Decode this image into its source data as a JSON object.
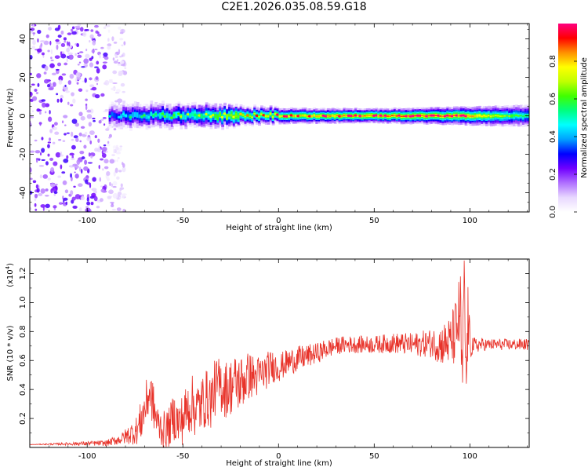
{
  "title": "C2E1.2026.035.08.59.G18",
  "chart_data": [
    {
      "type": "heatmap",
      "xlabel": "Height of straight line (km)",
      "ylabel": "Frequency (Hz)",
      "xlim": [
        -130,
        131
      ],
      "ylim": [
        -50,
        48
      ],
      "xticks": [
        -100,
        -50,
        0,
        50,
        100
      ],
      "yticks": [
        -40,
        -20,
        0,
        20,
        40
      ],
      "colorbar": {
        "label": "Normalized spectral amplitude",
        "range": [
          0,
          1
        ],
        "ticks": [
          "0.0",
          "0.2",
          "0.4",
          "0.6",
          "0.8"
        ],
        "colormap": [
          "#ffffff",
          "#e8d8ff",
          "#b070ff",
          "#7000ff",
          "#0000ff",
          "#00a0ff",
          "#00ffff",
          "#00ff80",
          "#40ff00",
          "#c0ff00",
          "#ffff00",
          "#ff9000",
          "#ff0000",
          "#ff0080"
        ]
      },
      "noise_region_x": [
        -130,
        -80
      ],
      "signal_center_hz": 0,
      "signal_profile": [
        {
          "x": -85,
          "amp": 0.35,
          "width": 3.0
        },
        {
          "x": -75,
          "amp": 0.45,
          "width": 3.2
        },
        {
          "x": -50,
          "amp": 0.55,
          "width": 3.0
        },
        {
          "x": -25,
          "amp": 0.7,
          "width": 2.8
        },
        {
          "x": 0,
          "amp": 0.85,
          "width": 2.2
        },
        {
          "x": 50,
          "amp": 0.95,
          "width": 2.0
        },
        {
          "x": 95,
          "amp": 0.95,
          "width": 2.5
        },
        {
          "x": 131,
          "amp": 0.6,
          "width": 3.0
        }
      ]
    },
    {
      "type": "line",
      "xlabel": "Height of straight line (km)",
      "ylabel": "SNR (10 * v/v)",
      "y_multiplier_label": "(x10",
      "y_multiplier_exp": "4",
      "xlim": [
        -130,
        131
      ],
      "ylim": [
        0,
        13000
      ],
      "xticks": [
        -100,
        -50,
        0,
        50,
        100
      ],
      "yticks": [
        2000,
        4000,
        6000,
        8000,
        10000,
        12000
      ],
      "ytick_labels": [
        "0.2",
        "0.4",
        "0.6",
        "0.8",
        "1.0",
        "1.2"
      ],
      "color": "#e8332a",
      "series": [
        {
          "x": [
            -130,
            -90,
            -82,
            -78,
            -74,
            -72,
            -70,
            -68,
            -67,
            -66,
            -65,
            -63,
            -60,
            -57,
            -55,
            -52,
            -50,
            -47,
            -45,
            -43,
            -40,
            -38,
            -35,
            -33,
            -30,
            -28,
            -25,
            -22,
            -20,
            -17,
            -15,
            -12,
            -10,
            -7,
            -5,
            -2,
            0,
            5,
            10,
            15,
            20,
            25,
            30,
            35,
            40,
            50,
            60,
            70,
            80,
            85,
            90,
            93,
            95,
            96,
            97,
            98,
            99,
            100,
            102,
            105,
            110,
            120,
            131
          ],
          "y": [
            200,
            300,
            600,
            900,
            1200,
            1800,
            2600,
            3600,
            3800,
            3200,
            2500,
            1600,
            1200,
            1400,
            2200,
            1600,
            2000,
            2800,
            3000,
            2600,
            3000,
            3400,
            3300,
            4200,
            4300,
            4000,
            4200,
            4500,
            4400,
            4800,
            5000,
            4800,
            5000,
            5200,
            5500,
            5600,
            5500,
            5900,
            6100,
            6300,
            6500,
            6800,
            7000,
            7100,
            7100,
            7100,
            7200,
            7100,
            7200,
            7100,
            7300,
            8000,
            9500,
            4000,
            12300,
            3800,
            9000,
            7200,
            7000,
            7100,
            7100,
            7100,
            7100
          ],
          "noise_amplitude": [
            0,
            200,
            400,
            700,
            1000,
            1400,
            1600,
            1600,
            1600,
            1600,
            1600,
            1300,
            1300,
            1400,
            1600,
            1700,
            1800,
            2000,
            2000,
            2000,
            2000,
            2000,
            2000,
            2000,
            2000,
            2000,
            2000,
            2000,
            2000,
            1800,
            1600,
            1500,
            1400,
            1300,
            1200,
            1100,
            1000,
            900,
            900,
            800,
            700,
            700,
            600,
            600,
            600,
            600,
            700,
            800,
            1000,
            1400,
            1800,
            2500,
            3000,
            3000,
            1000,
            3000,
            2500,
            1200,
            600,
            500,
            400,
            400,
            400
          ]
        }
      ]
    }
  ]
}
